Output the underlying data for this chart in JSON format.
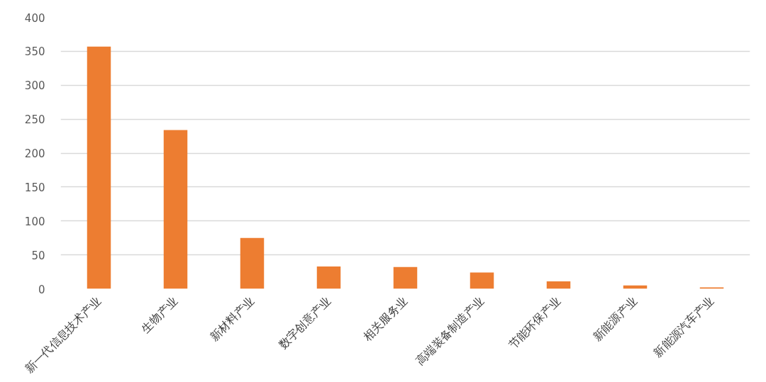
{
  "chart_data": {
    "type": "bar",
    "categories": [
      "新一代信息技术产业",
      "生物产业",
      "新材料产业",
      "数字创意产业",
      "相关服务业",
      "高端装备制造产业",
      "节能环保产业",
      "新能源产业",
      "新能源汽车产业"
    ],
    "values": [
      357,
      234,
      75,
      33,
      32,
      24,
      11,
      5,
      2
    ],
    "color": "#ed7d31",
    "ylim": [
      0,
      400
    ],
    "yticks": [
      0,
      50,
      100,
      150,
      200,
      250,
      300,
      350,
      400
    ],
    "grid": "y"
  }
}
